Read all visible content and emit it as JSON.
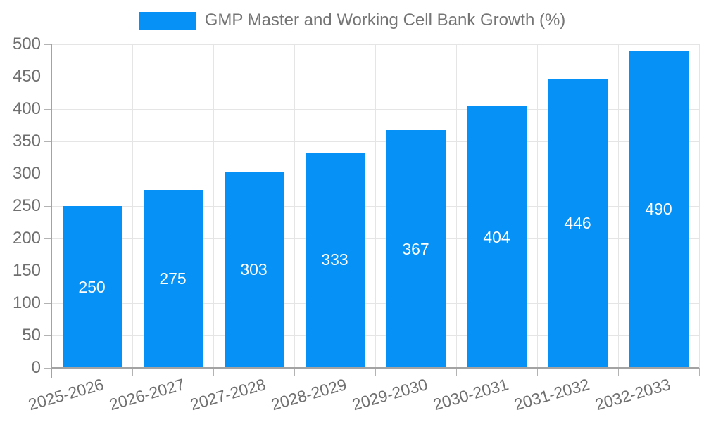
{
  "legend": {
    "label": "GMP Master and Working Cell Bank Growth (%)"
  },
  "colors": {
    "bar": "#0591f5",
    "axis": "#a3a3a3",
    "tick": "#b3b3b3",
    "grid": "#e5e5e5",
    "axis_label_text": "#6f6f6f",
    "legend_text": "#757575",
    "bar_label_text": "#ffffff",
    "background": "#ffffff"
  },
  "chart_data": {
    "type": "bar",
    "title": "GMP Master and Working Cell Bank Growth (%)",
    "categories": [
      "2025-2026",
      "2026-2027",
      "2027-2028",
      "2028-2029",
      "2029-2030",
      "2030-2031",
      "2031-2032",
      "2032-2033"
    ],
    "values": [
      250,
      275,
      303,
      333,
      367,
      404,
      446,
      490
    ],
    "xlabel": "",
    "ylabel": "",
    "ylim": [
      0,
      500
    ],
    "ytick_step": 50,
    "ytick_labels": [
      "0",
      "50",
      "100",
      "150",
      "200",
      "250",
      "300",
      "350",
      "400",
      "450",
      "500"
    ],
    "grid": true,
    "legend_position": "top-center",
    "bar_label_position": "inside-center",
    "x_label_rotation_deg": -16
  }
}
